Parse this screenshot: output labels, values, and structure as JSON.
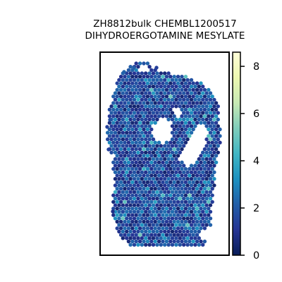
{
  "chart_data": {
    "type": "scatter",
    "subtype": "spatial hexbin expression map",
    "title": [
      "ZH8812bulk CHEMBL1200517",
      "DIHYDROERGOTAMINE MESYLATE"
    ],
    "xlabel": "",
    "ylabel": "",
    "axes_ticks": false,
    "grid": false,
    "colormap": "YlGnBu_r",
    "colorbar": {
      "vmin": 0,
      "vmax": 8.6,
      "ticks": [
        0,
        2,
        4,
        6,
        8
      ],
      "tick_labels": [
        "0",
        "2",
        "4",
        "6",
        "8"
      ],
      "placement": "right"
    },
    "value_distribution": {
      "typical_range": [
        0.5,
        2.5
      ],
      "sparse_high_values": [
        3.5,
        5.5
      ]
    }
  },
  "colors": {
    "cmap_stops": [
      "#081d58",
      "#253494",
      "#225ea8",
      "#1d91c0",
      "#41b6c4",
      "#7fcdbb",
      "#c7e9b4",
      "#edf8b1",
      "#ffffd9"
    ],
    "frame": "#000000",
    "background": "#ffffff"
  }
}
